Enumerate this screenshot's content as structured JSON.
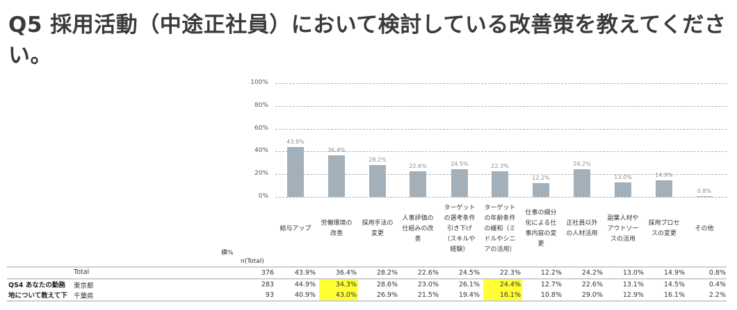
{
  "title": "Q5 採用活動（中途正社員）において検討している改善策を教えてください。",
  "chart_data": {
    "type": "bar",
    "title": "Q5 採用活動（中途正社員）において検討している改善策を教えてください。",
    "categories": [
      "給与アップ",
      "労働環境の改善",
      "採用手法の変更",
      "人事評価の仕組みの改善",
      "ターゲットの選考条件引き下げ（スキルや経験）",
      "ターゲットの年齢条件の緩和（ミドルやシニアの活用）",
      "仕事の細分化による仕事内容の変更",
      "正社員以外の人材活用",
      "副業人材やアウトソースの活用",
      "採用プロセスの変更",
      "その他"
    ],
    "values": [
      43.9,
      36.4,
      28.2,
      22.6,
      24.5,
      22.3,
      12.2,
      24.2,
      13.0,
      14.9,
      0.8
    ],
    "value_labels": [
      "43.9%",
      "36.4%",
      "28.2%",
      "22.6%",
      "24.5%",
      "22.3%",
      "12.2%",
      "24.2%",
      "13.0%",
      "14.9%",
      "0.8%"
    ],
    "xlabel": "",
    "ylabel": "",
    "ylim": [
      0,
      100
    ],
    "yticks": [
      "0%",
      "20%",
      "40%",
      "60%",
      "80%",
      "100%"
    ],
    "grid": true,
    "bar_color": "#a3b0ba",
    "legend": null
  },
  "category_lines": [
    "給与アップ",
    "労働環境の\n改善",
    "採用手法の\n変更",
    "人事評価の\n仕組みの改\n善",
    "ターゲット\nの選考条件\n引き下げ\n（スキルや\n経験）",
    "ターゲット\nの年齢条件\nの緩和（ミ\nドルやシニ\nアの活用）",
    "仕事の細分\n化による仕\n事内容の変\n更",
    "正社員以外\nの人材活用",
    "副業人材や\nアウトソー\nスの活用",
    "採用プロセ\nスの変更",
    "その他"
  ],
  "table": {
    "header_pct": "横%",
    "header_n": "n(Total)",
    "group_label_line1": "QS4 あなたの勤務",
    "group_label_line2": "地について教えて下",
    "highlight_color": "#ffff33",
    "rows": [
      {
        "label": "Total",
        "n": "376",
        "values": [
          "43.9%",
          "36.4%",
          "28.2%",
          "22.6%",
          "24.5%",
          "22.3%",
          "12.2%",
          "24.2%",
          "13.0%",
          "14.9%",
          "0.8%"
        ],
        "highlight": []
      },
      {
        "label": "東京都",
        "n": "283",
        "values": [
          "44.9%",
          "34.3%",
          "28.6%",
          "23.0%",
          "26.1%",
          "24.4%",
          "12.7%",
          "22.6%",
          "13.1%",
          "14.5%",
          "0.4%"
        ],
        "highlight": [
          1,
          5
        ]
      },
      {
        "label": "千葉県",
        "n": "93",
        "values": [
          "40.9%",
          "43.0%",
          "26.9%",
          "21.5%",
          "19.4%",
          "16.1%",
          "10.8%",
          "29.0%",
          "12.9%",
          "16.1%",
          "2.2%"
        ],
        "highlight": [
          1,
          5
        ]
      }
    ]
  }
}
